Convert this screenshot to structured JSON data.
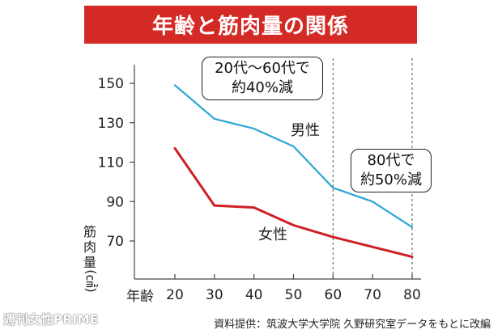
{
  "title": "年齢と筋肉量の関係",
  "callouts": {
    "first": {
      "line1": "20代〜60代で",
      "line2": "約40%減"
    },
    "second": {
      "line1": "80代で",
      "line2": "約50%減"
    }
  },
  "ylabel_text": "筋肉量",
  "ylabel_unit": "(㎠)",
  "xlabel": "年齢",
  "source": "資料提供：筑波大学大学院 久野研究室データをもとに改編",
  "watermark": "週刊女性PRIME",
  "colors": {
    "male": "#2aa6d6",
    "female": "#cf1f27",
    "banner": "#d42a25"
  },
  "chart_data": {
    "type": "line",
    "x": [
      20,
      30,
      40,
      50,
      60,
      70,
      80
    ],
    "x_ticks": [
      "20",
      "30",
      "40",
      "50",
      "60",
      "70",
      "80"
    ],
    "y_ticks": [
      "150",
      "130",
      "110",
      "90",
      "70"
    ],
    "xlim": [
      20,
      80
    ],
    "ylim": [
      60,
      155
    ],
    "series": [
      {
        "name": "男性",
        "values": [
          149,
          132,
          127,
          118,
          97,
          90,
          77
        ]
      },
      {
        "name": "女性",
        "values": [
          117,
          88,
          87,
          78,
          72,
          67,
          62
        ]
      }
    ],
    "grid": "dashed vertical lines at x=60 and x=80",
    "xlabel": "年齢",
    "ylabel": "筋肉量 (㎠)"
  }
}
